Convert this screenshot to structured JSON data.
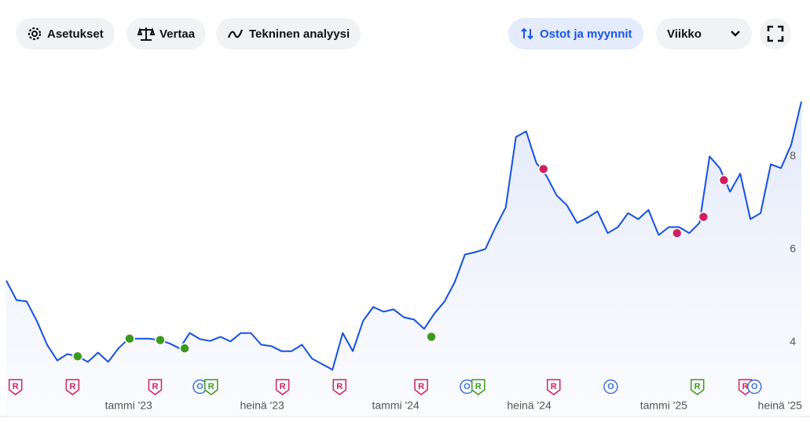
{
  "toolbar": {
    "settings": "Asetukset",
    "compare": "Vertaa",
    "technical": "Tekninen analyysi",
    "trades": "Ostot ja myynnit",
    "period": "Viikko"
  },
  "chart_data": {
    "type": "line",
    "color": "#1450e6",
    "values": [
      5.33,
      4.91,
      4.88,
      4.46,
      3.95,
      3.61,
      3.75,
      3.7,
      3.58,
      3.78,
      3.58,
      3.87,
      4.08,
      4.08,
      4.08,
      4.05,
      3.98,
      3.87,
      4.2,
      4.07,
      4.03,
      4.12,
      4.02,
      4.2,
      4.2,
      3.95,
      3.92,
      3.81,
      3.81,
      3.95,
      3.65,
      3.53,
      3.41,
      4.2,
      3.81,
      4.46,
      4.76,
      4.66,
      4.71,
      4.54,
      4.49,
      4.29,
      4.62,
      4.88,
      5.3,
      5.89,
      5.94,
      6.01,
      6.48,
      6.9,
      8.42,
      8.54,
      7.86,
      7.58,
      7.16,
      6.95,
      6.57,
      6.68,
      6.82,
      6.35,
      6.48,
      6.78,
      6.65,
      6.85,
      6.31,
      6.48,
      6.48,
      6.35,
      6.57,
      8.0,
      7.75,
      7.24,
      7.63,
      6.65,
      6.78,
      7.83,
      7.75,
      8.25,
      9.18
    ],
    "xlim": [
      0,
      78
    ],
    "ylim": [
      3.35,
      10.1
    ],
    "yticks": [
      4,
      6,
      8
    ],
    "xticks": [
      {
        "value": 12.0,
        "label": "tammi '23"
      },
      {
        "value": 25.1,
        "label": "heinä '23"
      },
      {
        "value": 38.2,
        "label": "tammi '24"
      },
      {
        "value": 51.3,
        "label": "heinä '24"
      },
      {
        "value": 64.5,
        "label": "tammi '25"
      },
      {
        "value": 75.9,
        "label": "heinä '25"
      }
    ],
    "buys": {
      "color": "#3a9a1c",
      "x": [
        7.0,
        12.1,
        15.1,
        17.5,
        41.7
      ],
      "values": [
        3.7,
        4.08,
        4.05,
        3.87,
        4.12
      ]
    },
    "sells": {
      "color": "#d0215f",
      "x": [
        52.7,
        65.8,
        68.4,
        70.4
      ],
      "values": [
        7.73,
        6.35,
        6.7,
        7.49
      ]
    },
    "events": [
      {
        "label": "R",
        "x": 0.9,
        "color": "#d0215f"
      },
      {
        "label": "R",
        "x": 6.5,
        "color": "#d0215f"
      },
      {
        "label": "R",
        "x": 14.6,
        "color": "#d0215f"
      },
      {
        "label": "O",
        "x": 19.0,
        "color": "#3b6fe0"
      },
      {
        "label": "R",
        "x": 20.1,
        "color": "#3a9a1c"
      },
      {
        "label": "R",
        "x": 27.1,
        "color": "#d0215f"
      },
      {
        "label": "R",
        "x": 32.7,
        "color": "#d0215f"
      },
      {
        "label": "R",
        "x": 40.7,
        "color": "#d0215f"
      },
      {
        "label": "O",
        "x": 45.2,
        "color": "#3b6fe0"
      },
      {
        "label": "R",
        "x": 46.3,
        "color": "#3a9a1c"
      },
      {
        "label": "R",
        "x": 53.7,
        "color": "#d0215f"
      },
      {
        "label": "O",
        "x": 59.3,
        "color": "#3b6fe0"
      },
      {
        "label": "R",
        "x": 67.8,
        "color": "#3a9a1c"
      },
      {
        "label": "R",
        "x": 72.5,
        "color": "#d0215f"
      },
      {
        "label": "O",
        "x": 73.4,
        "color": "#3b6fe0"
      }
    ]
  }
}
